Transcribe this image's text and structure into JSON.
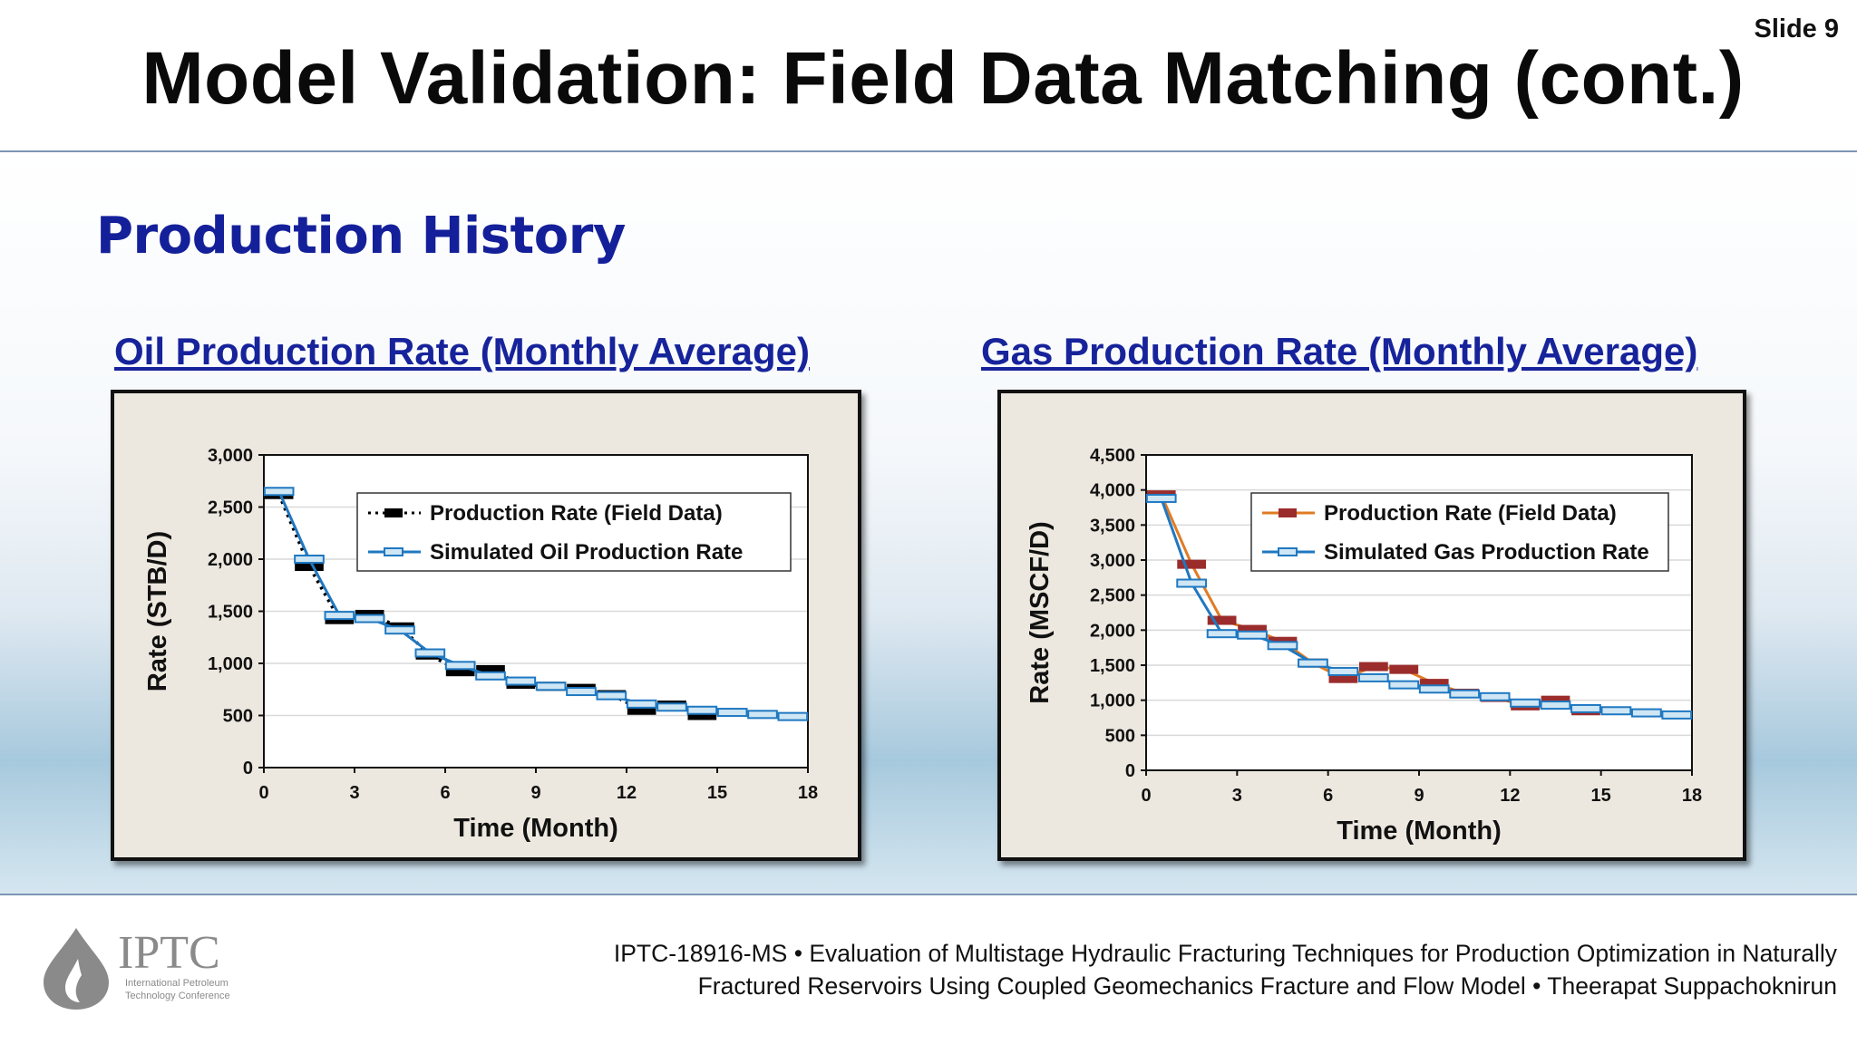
{
  "slide": {
    "number": "Slide 9",
    "title": "Model Validation: Field Data Matching (cont.)",
    "section_heading": "Production History"
  },
  "logo": {
    "acronym": "IPTC",
    "line1": "International Petroleum",
    "line2": "Technology Conference"
  },
  "footer": {
    "line1": "IPTC-18916-MS • Evaluation of Multistage Hydraulic Fracturing Techniques for Production Optimization in Naturally",
    "line2": "Fractured Reservoirs Using Coupled Geomechanics Fracture and Flow Model • Theerapat Suppachoknirun"
  },
  "chart_data": [
    {
      "type": "line",
      "title": "Oil Production Rate (Monthly Average)",
      "xlabel": "Time (Month)",
      "ylabel": "Rate (STB/D)",
      "xlim": [
        0,
        18
      ],
      "ylim": [
        0,
        3000
      ],
      "x_ticks": [
        "0",
        "3",
        "6",
        "9",
        "12",
        "15",
        "18"
      ],
      "y_ticks": [
        "0",
        "500",
        "1,000",
        "1,500",
        "2,000",
        "2,500",
        "3,000"
      ],
      "legend_position": "top-right",
      "series": [
        {
          "name": "Production Rate (Field Data)",
          "color": "#000000",
          "line_style": "dotted",
          "marker": "dash",
          "x": [
            0.5,
            1.5,
            2.5,
            3.5,
            4.5,
            5.5,
            6.5,
            7.5,
            8.5,
            9.5,
            10.5,
            11.5,
            12.5,
            13.5,
            14.5
          ],
          "y": [
            2620,
            1930,
            1420,
            1470,
            1350,
            1080,
            920,
            940,
            800,
            780,
            760,
            700,
            550,
            600,
            500
          ]
        },
        {
          "name": "Simulated Oil Production Rate",
          "color": "#1f78c1",
          "line_style": "solid",
          "marker": "dash",
          "x": [
            0.5,
            1.5,
            2.5,
            3.5,
            4.5,
            5.5,
            6.5,
            7.5,
            8.5,
            9.5,
            10.5,
            11.5,
            12.5,
            13.5,
            14.5,
            15.5,
            16.5,
            17.5
          ],
          "y": [
            2650,
            2000,
            1460,
            1430,
            1320,
            1100,
            980,
            880,
            830,
            780,
            730,
            690,
            610,
            580,
            550,
            530,
            510,
            490
          ]
        }
      ]
    },
    {
      "type": "line",
      "title": "Gas Production Rate (Monthly Average)",
      "xlabel": "Time (Month)",
      "ylabel": "Rate (MSCF/D)",
      "xlim": [
        0,
        18
      ],
      "ylim": [
        0,
        4500
      ],
      "x_ticks": [
        "0",
        "3",
        "6",
        "9",
        "12",
        "15",
        "18"
      ],
      "y_ticks": [
        "0",
        "500",
        "1,000",
        "1,500",
        "2,000",
        "2,500",
        "3,000",
        "3,500",
        "4,000",
        "4,500"
      ],
      "legend_position": "top-right",
      "series": [
        {
          "name": "Production Rate (Field Data)",
          "color": "#e07b24",
          "marker_color": "#9b2c2c",
          "line_style": "solid",
          "marker": "dash",
          "x": [
            0.5,
            1.5,
            2.5,
            3.5,
            4.5,
            5.5,
            6.5,
            7.5,
            8.5,
            9.5,
            10.5,
            11.5,
            12.5,
            13.5,
            14.5
          ],
          "y": [
            3930,
            2940,
            2140,
            2010,
            1840,
            1530,
            1310,
            1480,
            1440,
            1240,
            1100,
            1040,
            920,
            1000,
            850
          ]
        },
        {
          "name": "Simulated Gas Production Rate",
          "color": "#1f78c1",
          "line_style": "solid",
          "marker": "dash",
          "x": [
            0.5,
            1.5,
            2.5,
            3.5,
            4.5,
            5.5,
            6.5,
            7.5,
            8.5,
            9.5,
            10.5,
            11.5,
            12.5,
            13.5,
            14.5,
            15.5,
            16.5,
            17.5
          ],
          "y": [
            3880,
            2670,
            1950,
            1930,
            1780,
            1530,
            1410,
            1320,
            1220,
            1160,
            1090,
            1050,
            960,
            930,
            880,
            850,
            820,
            790
          ]
        }
      ]
    }
  ]
}
